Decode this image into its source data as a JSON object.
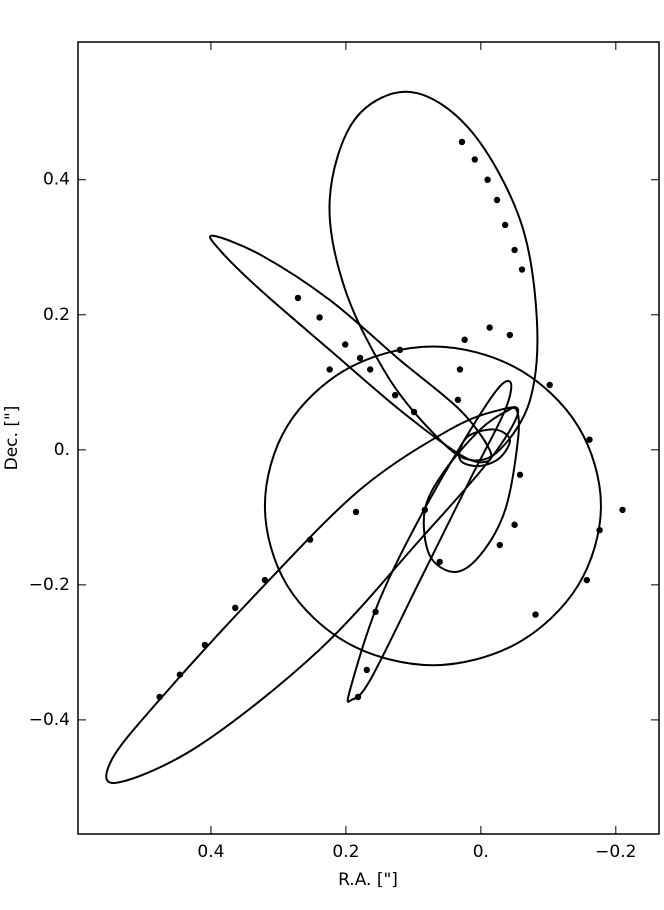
{
  "chart_data": {
    "type": "scatter",
    "xlabel": "R.A. [\"]",
    "ylabel": "Dec. [\"]",
    "xlim": [
      0.597,
      -0.264
    ],
    "ylim": [
      -0.569,
      0.604
    ],
    "xticks": [
      0.4,
      0.2,
      {
        "value": 0,
        "label": "0."
      },
      {
        "value": -0.2,
        "label": "−0.2"
      }
    ],
    "yticks": [
      {
        "value": -0.4,
        "label": "−0.4"
      },
      {
        "value": -0.2,
        "label": "−0.2"
      },
      {
        "value": 0,
        "label": "0."
      },
      0.2,
      0.4
    ],
    "color": "#000000",
    "lines": [
      {
        "x": [
          0.105,
          0.016,
          -0.058,
          -0.083,
          -0.073,
          -0.028,
          0.016,
          0.061,
          0.135,
          0.201,
          0.224,
          0.187
        ],
        "y": [
          0.53,
          0.474,
          0.341,
          0.193,
          0.074,
          0.0,
          -0.015,
          0.015,
          0.104,
          0.237,
          0.37,
          0.489
        ]
      },
      {
        "x": [
          0.397,
          0.327,
          0.224,
          0.12,
          0.031,
          -0.013,
          -0.006,
          0.031,
          0.12,
          0.224,
          0.327,
          0.387
        ],
        "y": [
          0.317,
          0.289,
          0.222,
          0.133,
          0.059,
          0.0,
          -0.018,
          -0.007,
          0.059,
          0.148,
          0.237,
          0.296
        ]
      },
      {
        "x": [
          -0.178,
          -0.144,
          -0.053,
          0.071,
          0.196,
          0.287,
          0.32,
          0.287,
          0.196,
          0.071,
          -0.053,
          -0.144
        ],
        "y": [
          -0.083,
          0.035,
          0.121,
          0.153,
          0.121,
          0.035,
          -0.083,
          -0.201,
          -0.287,
          -0.319,
          -0.287,
          -0.201
        ]
      },
      {
        "x": [
          0.539,
          0.416,
          0.239,
          0.09,
          -0.013,
          -0.055,
          -0.028,
          0.046,
          0.179,
          0.327,
          0.476,
          0.547
        ],
        "y": [
          -0.493,
          -0.437,
          -0.296,
          -0.133,
          -0.015,
          0.055,
          0.059,
          0.03,
          -0.059,
          -0.207,
          -0.37,
          -0.459
        ]
      },
      {
        "x": [
          -0.043,
          -0.036,
          0.016,
          0.09,
          0.164,
          0.191,
          0.194,
          0.15,
          0.076,
          -0.013
        ],
        "y": [
          0.101,
          0.059,
          -0.044,
          -0.193,
          -0.341,
          -0.37,
          -0.356,
          -0.222,
          -0.074,
          0.074
        ]
      },
      {
        "x": [
          -0.053,
          -0.055,
          -0.036,
          0.001,
          0.039,
          0.076,
          0.083,
          0.053,
          0.001,
          -0.036
        ],
        "y": [
          0.059,
          0.015,
          -0.089,
          -0.156,
          -0.181,
          -0.156,
          -0.089,
          -0.03,
          0.03,
          0.056
        ]
      },
      {
        "x": [
          0.031,
          0.016,
          -0.021,
          -0.043,
          -0.028,
          0.001,
          0.028
        ],
        "y": [
          0.0,
          0.022,
          0.03,
          0.015,
          -0.012,
          -0.024,
          -0.018
        ]
      }
    ],
    "points": {
      "x": [
        0.028,
        0.009,
        -0.01,
        -0.024,
        -0.036,
        -0.05,
        -0.061,
        0.271,
        0.239,
        0.201,
        0.164,
        0.127,
        0.099,
        0.224,
        0.179,
        0.12,
        0.024,
        -0.013,
        -0.043,
        -0.102,
        -0.161,
        -0.176,
        -0.157,
        -0.21,
        -0.081,
        0.476,
        0.446,
        0.409,
        0.364,
        0.32,
        0.253,
        0.185,
        0.182,
        0.169,
        0.156,
        -0.058,
        -0.05,
        -0.028,
        0.061,
        0.083,
        0.034,
        0.031
      ],
      "y": [
        0.456,
        0.43,
        0.4,
        0.37,
        0.333,
        0.296,
        0.267,
        0.225,
        0.196,
        0.156,
        0.119,
        0.081,
        0.056,
        0.119,
        0.136,
        0.148,
        0.163,
        0.181,
        0.17,
        0.096,
        0.015,
        -0.119,
        -0.193,
        -0.089,
        -0.244,
        -0.366,
        -0.333,
        -0.289,
        -0.234,
        -0.193,
        -0.133,
        -0.092,
        -0.366,
        -0.326,
        -0.24,
        -0.037,
        -0.111,
        -0.141,
        -0.166,
        -0.089,
        0.074,
        0.119
      ]
    }
  }
}
